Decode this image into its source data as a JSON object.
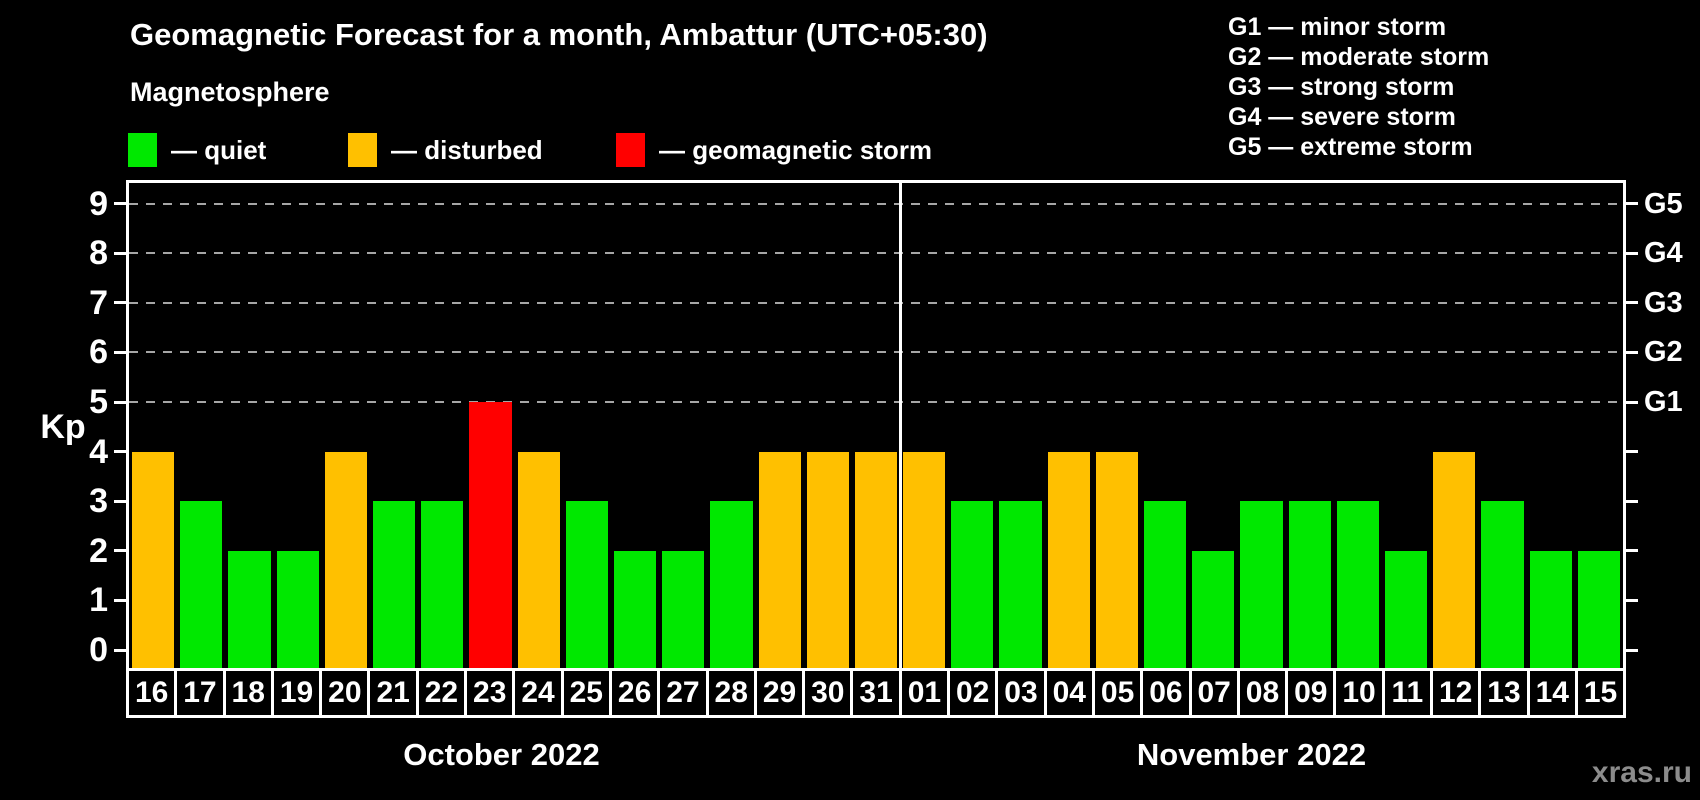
{
  "header": {
    "title": "Geomagnetic Forecast for a month, Ambattur (UTC+05:30)",
    "subtitle": "Magnetosphere"
  },
  "legend": {
    "items": [
      {
        "key": "quiet",
        "label": "— quiet"
      },
      {
        "key": "disturbed",
        "label": "— disturbed"
      },
      {
        "key": "storm",
        "label": "— geomagnetic storm"
      }
    ]
  },
  "g_legend": [
    "G1 — minor storm",
    "G2 — moderate storm",
    "G3 — strong storm",
    "G4 — severe storm",
    "G5 — extreme storm"
  ],
  "colors": {
    "quiet": "#00e800",
    "disturbed": "#ffc000",
    "storm": "#ff0000",
    "background": "#000000",
    "axis": "#ffffff",
    "grid": "#a6a6a6",
    "watermark": "#8c8c8c"
  },
  "axis": {
    "left_label": "Kp",
    "ticks": [
      0,
      1,
      2,
      3,
      4,
      5,
      6,
      7,
      8,
      9
    ],
    "right_labels": [
      {
        "label": "G1",
        "value": 5
      },
      {
        "label": "G2",
        "value": 6
      },
      {
        "label": "G3",
        "value": 7
      },
      {
        "label": "G4",
        "value": 8
      },
      {
        "label": "G5",
        "value": 9
      }
    ]
  },
  "months": [
    {
      "label": "October 2022",
      "days": 16
    },
    {
      "label": "November 2022",
      "days": 15
    }
  ],
  "chart_data": {
    "type": "bar",
    "title": "Geomagnetic Forecast for a month, Ambattur (UTC+05:30)",
    "ylabel": "Kp",
    "ylim": [
      0,
      9
    ],
    "grid": "dashed horizontal lines at Kp 5,6,7,8,9 (G1–G5)",
    "legend_position": "top",
    "categories": [
      "16",
      "17",
      "18",
      "19",
      "20",
      "21",
      "22",
      "23",
      "24",
      "25",
      "26",
      "27",
      "28",
      "29",
      "30",
      "31",
      "01",
      "02",
      "03",
      "04",
      "05",
      "06",
      "07",
      "08",
      "09",
      "10",
      "11",
      "12",
      "13",
      "14",
      "15"
    ],
    "values": [
      4,
      3,
      2,
      2,
      4,
      3,
      3,
      5,
      4,
      3,
      2,
      2,
      3,
      4,
      4,
      4,
      4,
      3,
      3,
      4,
      4,
      3,
      2,
      3,
      3,
      3,
      2,
      4,
      3,
      2,
      2
    ],
    "states": [
      "disturbed",
      "quiet",
      "quiet",
      "quiet",
      "disturbed",
      "quiet",
      "quiet",
      "storm",
      "disturbed",
      "quiet",
      "quiet",
      "quiet",
      "quiet",
      "disturbed",
      "disturbed",
      "disturbed",
      "disturbed",
      "quiet",
      "quiet",
      "disturbed",
      "disturbed",
      "quiet",
      "quiet",
      "quiet",
      "quiet",
      "quiet",
      "quiet",
      "disturbed",
      "quiet",
      "quiet",
      "quiet"
    ]
  },
  "watermark": "xras.ru"
}
